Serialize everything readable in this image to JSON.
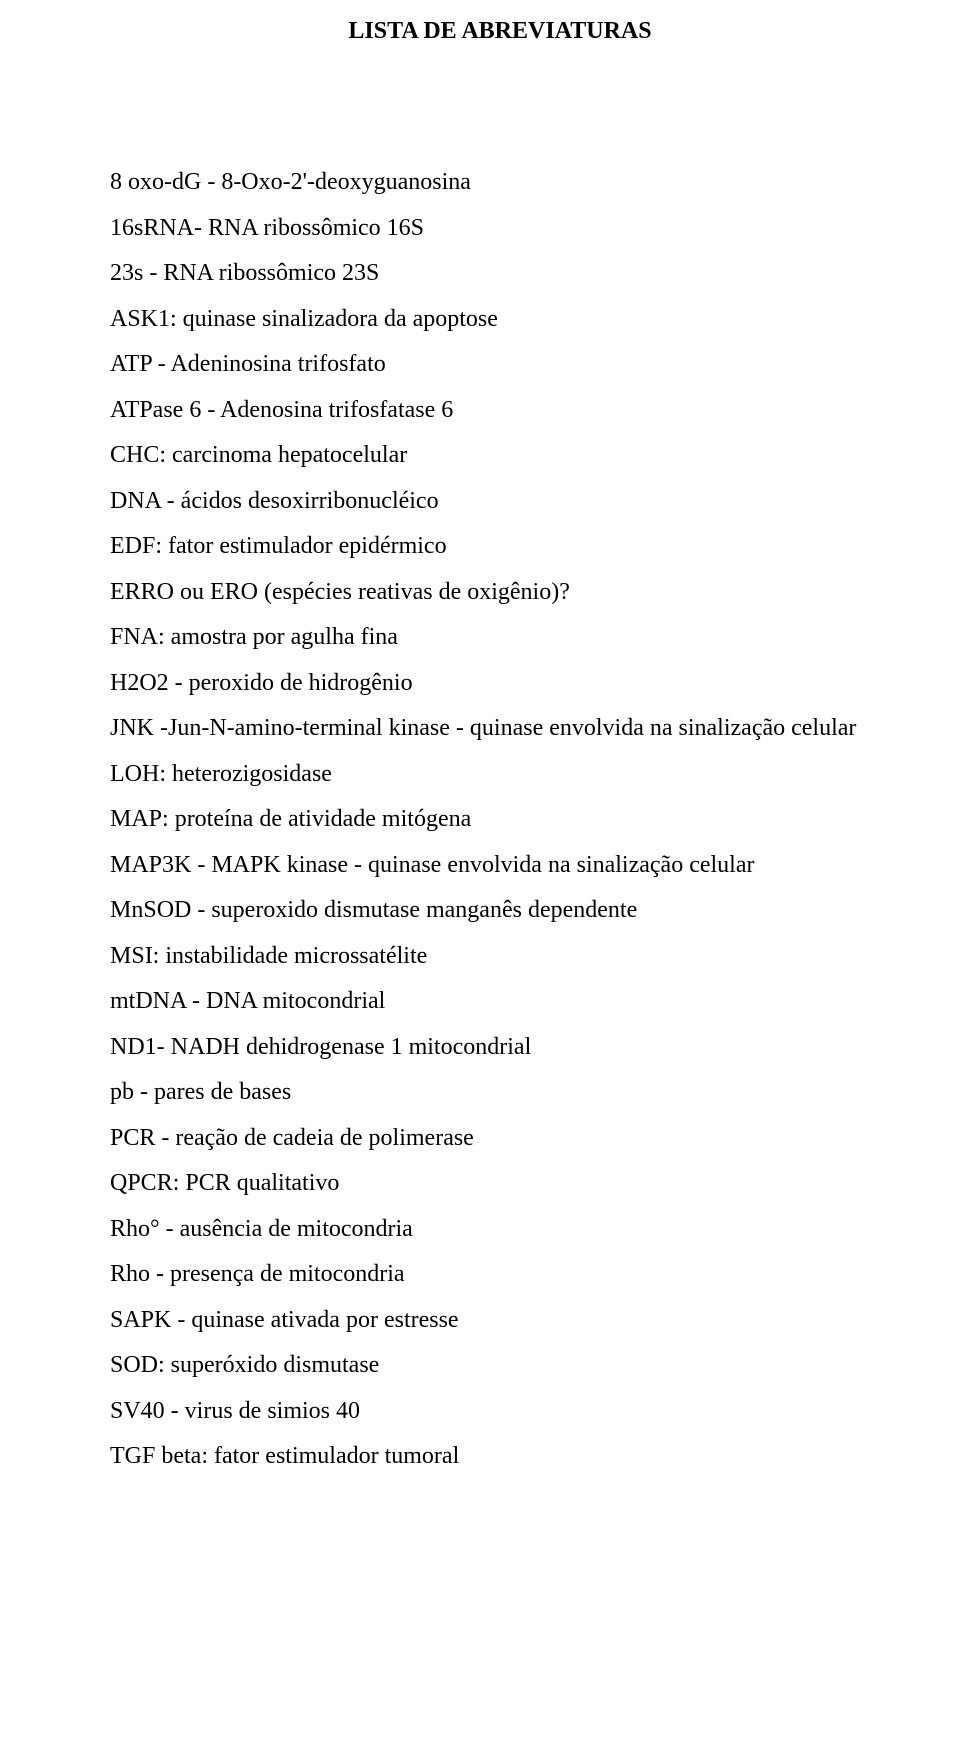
{
  "title": "LISTA DE ABREVIATURAS",
  "entries": [
    "8 oxo-dG - 8-Oxo-2'-deoxyguanosina",
    "16sRNA- RNA ribossômico 16S",
    "23s - RNA ribossômico 23S",
    "ASK1: quinase sinalizadora da apoptose",
    "ATP - Adeninosina trifosfato",
    "ATPase 6 - Adenosina trifosfatase 6",
    "CHC: carcinoma hepatocelular",
    "DNA - ácidos desoxirribonucléico",
    "EDF: fator estimulador epidérmico",
    "ERRO ou ERO (espécies reativas de oxigênio)?",
    "FNA: amostra por agulha fina",
    "H2O2 - peroxido de hidrogênio",
    "JNK -Jun-N-amino-terminal kinase - quinase envolvida na sinalização celular",
    "LOH: heterozigosidase",
    "MAP: proteína de atividade mitógena",
    "MAP3K - MAPK kinase - quinase envolvida na sinalização celular",
    "MnSOD - superoxido dismutase manganês dependente",
    "MSI: instabilidade microssatélite",
    "mtDNA - DNA mitocondrial",
    "ND1- NADH dehidrogenase 1 mitocondrial",
    "pb - pares de bases",
    "PCR - reação de cadeia de polimerase",
    "QPCR: PCR qualitativo",
    "Rho° - ausência de mitocondria",
    "Rho - presença de mitocondria",
    "SAPK - quinase ativada por estresse",
    "SOD: superóxido dismutase",
    "SV40 - virus de simios 40",
    "TGF beta: fator estimulador tumoral"
  ]
}
